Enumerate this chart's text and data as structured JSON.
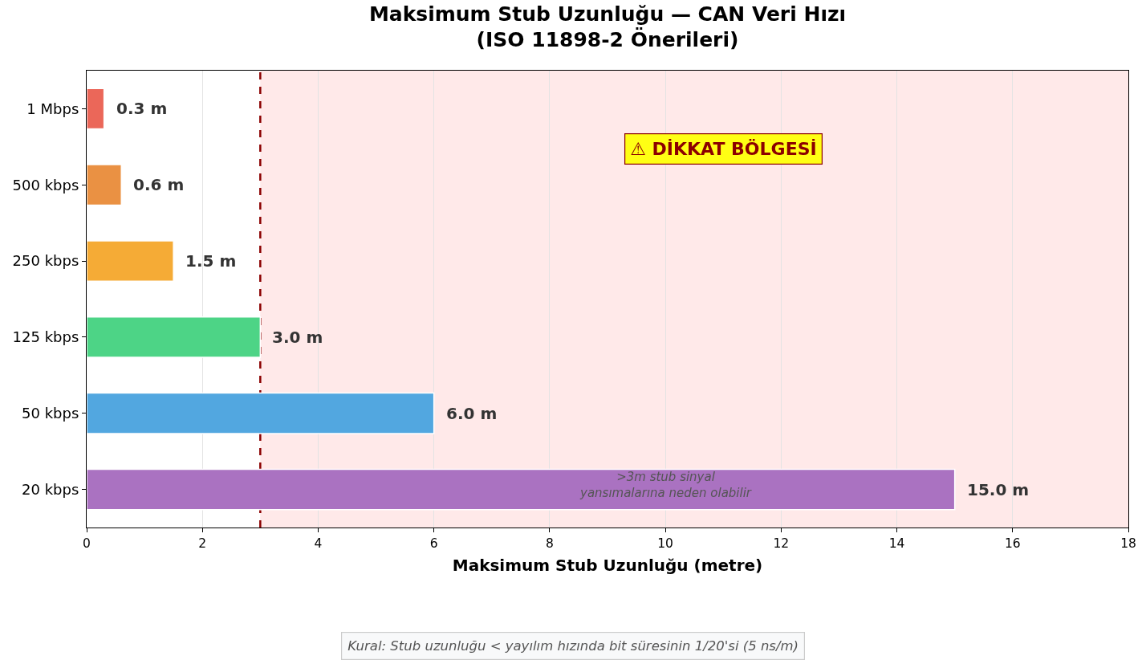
{
  "chart_data": {
    "type": "bar",
    "orientation": "horizontal",
    "title": "Maksimum Stub Uzunluğu — CAN Veri Hızı\n(ISO 11898-2 Önerileri)",
    "xlabel": "Maksimum Stub Uzunluğu (metre)",
    "categories": [
      "1 Mbps",
      "500 kbps",
      "250 kbps",
      "125 kbps",
      "50 kbps",
      "20 kbps"
    ],
    "values": [
      0.3,
      0.6,
      1.5,
      3.0,
      6.0,
      15.0
    ],
    "colors": [
      "#eb6759",
      "#ea9143",
      "#f5ab36",
      "#4dd486",
      "#52a7e0",
      "#aa72c1"
    ],
    "value_labels": [
      "0.3 m",
      "0.6 m",
      "1.5 m",
      "3.0 m",
      "6.0 m",
      "15.0 m"
    ],
    "xlim": [
      0,
      18
    ],
    "xticks": [
      0,
      2,
      4,
      6,
      8,
      10,
      12,
      14,
      16,
      18
    ],
    "grid": "x",
    "ref_lines": [
      {
        "axis": "x",
        "value": 3,
        "color": "#8b0000",
        "line_style": "dashed"
      }
    ],
    "bands": [
      {
        "axis": "x",
        "from": 3,
        "to": 18,
        "label": "⚠ DİKKAT BÖLGESİ",
        "color": "#ffe9e9"
      }
    ],
    "annotations": [
      ">3m stub sinyal\nyansımalarına neden olabilir",
      "Kural: Stub uzunluğu < yayılım hızında bit süresinin 1/20'si (5 ns/m)"
    ]
  }
}
